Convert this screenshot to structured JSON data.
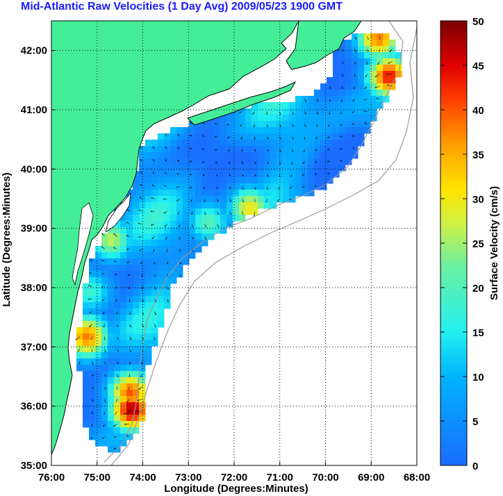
{
  "title": "Mid-Atlantic Raw Velocities (1 Day Avg) 2009/05/23 1900 GMT",
  "chart_data": {
    "type": "map",
    "xlabel": "Longitude (Degrees:Minutes)",
    "ylabel": "Latitude (Degrees:Minutes)",
    "x_ticks": [
      "76:00",
      "75:00",
      "74:00",
      "73:00",
      "72:00",
      "71:00",
      "70:00",
      "69:00",
      "68:00"
    ],
    "y_ticks": [
      "42:00",
      "41:00",
      "40:00",
      "39:00",
      "38:00",
      "37:00",
      "36:00",
      "35:00"
    ],
    "xlim": [
      -76,
      -68
    ],
    "ylim": [
      35,
      42.5
    ],
    "grid": "dotted",
    "colorbar": {
      "label": "Surface Velocity (cm/s)",
      "ticks": [
        "0",
        "5",
        "10",
        "15",
        "20",
        "25",
        "30",
        "35",
        "40",
        "45",
        "50"
      ],
      "range": [
        0,
        50
      ]
    },
    "colors": {
      "land": "#44ee99",
      "title": "#1a1aff",
      "coast": "#000000",
      "isobath": "#9a9a9a"
    }
  }
}
